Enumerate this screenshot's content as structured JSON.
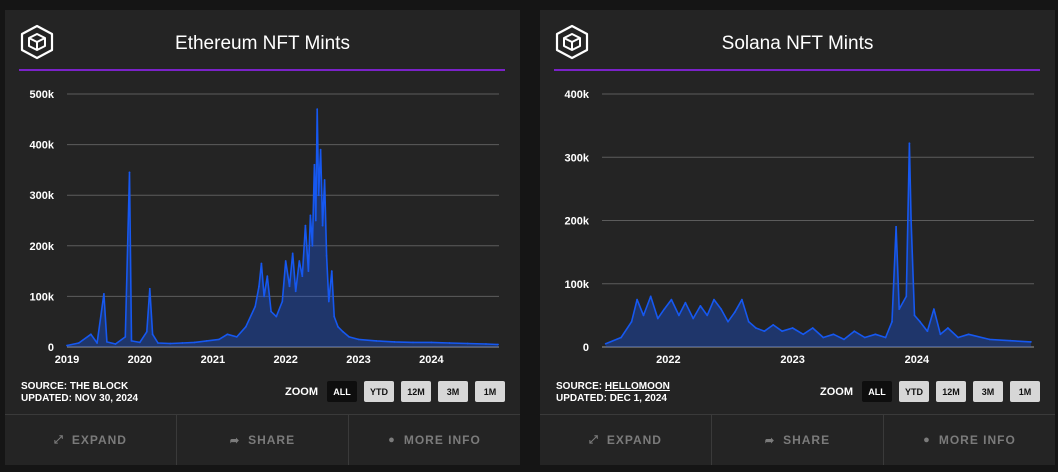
{
  "footer": {
    "expand": "EXPAND",
    "share": "SHARE",
    "more_info": "MORE INFO"
  },
  "zoom": {
    "label": "ZOOM",
    "options": [
      "ALL",
      "YTD",
      "12M",
      "3M",
      "1M"
    ],
    "selected": "ALL"
  },
  "colors": {
    "series": "#1658f0",
    "accent_rule": "#7a22c8",
    "panel_bg": "#242424",
    "grid": "#5c5c5c"
  },
  "icons": {
    "logo": "cube-icon",
    "expand": "expand-arrows-icon",
    "share": "share-arrow-icon",
    "more_info": "info-circle-icon"
  },
  "panels": [
    {
      "title": "Ethereum NFT Mints",
      "source_prefix": "SOURCE:",
      "source_name": "THE BLOCK",
      "updated": "UPDATED: NOV 30, 2024"
    },
    {
      "title": "Solana NFT Mints",
      "source_prefix": "SOURCE:",
      "source_name": "HELLOMOON",
      "updated": "UPDATED: DEC 1, 2024"
    }
  ],
  "chart_data": [
    {
      "type": "area",
      "title": "Ethereum NFT Mints",
      "xlabel": "",
      "ylabel": "",
      "x_ticks": [
        "2019",
        "2020",
        "2021",
        "2022",
        "2023",
        "2024"
      ],
      "y_ticks": [
        "0",
        "100k",
        "200k",
        "300k",
        "400k",
        "500k"
      ],
      "ylim": [
        0,
        500000
      ],
      "grid": true,
      "series": [
        {
          "values": [
            [
              "2019-01-01",
              3000
            ],
            [
              "2019-03-01",
              8000
            ],
            [
              "2019-05-01",
              25000
            ],
            [
              "2019-06-01",
              8000
            ],
            [
              "2019-07-05",
              105000
            ],
            [
              "2019-07-20",
              10000
            ],
            [
              "2019-09-01",
              6000
            ],
            [
              "2019-10-20",
              20000
            ],
            [
              "2019-11-10",
              345000
            ],
            [
              "2019-11-20",
              12000
            ],
            [
              "2020-01-01",
              9000
            ],
            [
              "2020-02-05",
              30000
            ],
            [
              "2020-02-20",
              115000
            ],
            [
              "2020-03-05",
              25000
            ],
            [
              "2020-04-01",
              8000
            ],
            [
              "2020-06-01",
              7000
            ],
            [
              "2020-08-01",
              8000
            ],
            [
              "2020-10-01",
              9000
            ],
            [
              "2020-12-01",
              12000
            ],
            [
              "2021-02-01",
              15000
            ],
            [
              "2021-03-15",
              25000
            ],
            [
              "2021-05-01",
              20000
            ],
            [
              "2021-06-15",
              40000
            ],
            [
              "2021-08-01",
              80000
            ],
            [
              "2021-08-20",
              120000
            ],
            [
              "2021-09-01",
              165000
            ],
            [
              "2021-09-15",
              100000
            ],
            [
              "2021-10-01",
              140000
            ],
            [
              "2021-10-20",
              70000
            ],
            [
              "2021-11-15",
              60000
            ],
            [
              "2021-12-15",
              90000
            ],
            [
              "2022-01-01",
              170000
            ],
            [
              "2022-01-20",
              120000
            ],
            [
              "2022-02-05",
              185000
            ],
            [
              "2022-02-20",
              110000
            ],
            [
              "2022-03-10",
              170000
            ],
            [
              "2022-03-25",
              140000
            ],
            [
              "2022-04-10",
              240000
            ],
            [
              "2022-04-25",
              150000
            ],
            [
              "2022-05-05",
              260000
            ],
            [
              "2022-05-15",
              200000
            ],
            [
              "2022-05-25",
              360000
            ],
            [
              "2022-06-01",
              250000
            ],
            [
              "2022-06-08",
              470000
            ],
            [
              "2022-06-15",
              300000
            ],
            [
              "2022-06-25",
              390000
            ],
            [
              "2022-07-05",
              240000
            ],
            [
              "2022-07-15",
              330000
            ],
            [
              "2022-07-25",
              180000
            ],
            [
              "2022-08-05",
              90000
            ],
            [
              "2022-08-20",
              150000
            ],
            [
              "2022-09-01",
              60000
            ],
            [
              "2022-09-20",
              40000
            ],
            [
              "2022-10-15",
              30000
            ],
            [
              "2022-11-15",
              20000
            ],
            [
              "2023-01-01",
              15000
            ],
            [
              "2023-04-01",
              12000
            ],
            [
              "2023-07-01",
              10000
            ],
            [
              "2023-10-01",
              9000
            ],
            [
              "2024-01-01",
              9000
            ],
            [
              "2024-04-01",
              8000
            ],
            [
              "2024-07-01",
              7000
            ],
            [
              "2024-10-01",
              6000
            ],
            [
              "2024-11-30",
              5000
            ]
          ]
        }
      ]
    },
    {
      "type": "area",
      "title": "Solana NFT Mints",
      "xlabel": "",
      "ylabel": "",
      "x_ticks": [
        "2022",
        "2023",
        "2024"
      ],
      "y_ticks": [
        "0",
        "100k",
        "200k",
        "300k",
        "400k"
      ],
      "ylim": [
        0,
        400000
      ],
      "grid": true,
      "series": [
        {
          "values": [
            [
              "2021-07-01",
              5000
            ],
            [
              "2021-08-15",
              15000
            ],
            [
              "2021-09-15",
              40000
            ],
            [
              "2021-10-01",
              75000
            ],
            [
              "2021-10-20",
              50000
            ],
            [
              "2021-11-10",
              80000
            ],
            [
              "2021-12-01",
              45000
            ],
            [
              "2021-12-20",
              60000
            ],
            [
              "2022-01-10",
              75000
            ],
            [
              "2022-02-01",
              50000
            ],
            [
              "2022-02-20",
              70000
            ],
            [
              "2022-03-15",
              45000
            ],
            [
              "2022-04-05",
              65000
            ],
            [
              "2022-04-25",
              50000
            ],
            [
              "2022-05-15",
              75000
            ],
            [
              "2022-06-05",
              60000
            ],
            [
              "2022-06-25",
              40000
            ],
            [
              "2022-07-15",
              55000
            ],
            [
              "2022-08-05",
              75000
            ],
            [
              "2022-08-25",
              40000
            ],
            [
              "2022-09-15",
              30000
            ],
            [
              "2022-10-10",
              25000
            ],
            [
              "2022-11-05",
              35000
            ],
            [
              "2022-12-01",
              25000
            ],
            [
              "2023-01-01",
              30000
            ],
            [
              "2023-02-01",
              20000
            ],
            [
              "2023-03-01",
              30000
            ],
            [
              "2023-04-01",
              15000
            ],
            [
              "2023-05-01",
              20000
            ],
            [
              "2023-06-01",
              12000
            ],
            [
              "2023-07-01",
              25000
            ],
            [
              "2023-08-01",
              15000
            ],
            [
              "2023-09-01",
              20000
            ],
            [
              "2023-10-01",
              15000
            ],
            [
              "2023-10-20",
              40000
            ],
            [
              "2023-11-01",
              190000
            ],
            [
              "2023-11-10",
              60000
            ],
            [
              "2023-12-01",
              80000
            ],
            [
              "2023-12-10",
              322000
            ],
            [
              "2023-12-15",
              200000
            ],
            [
              "2023-12-25",
              50000
            ],
            [
              "2024-01-10",
              40000
            ],
            [
              "2024-02-01",
              25000
            ],
            [
              "2024-02-20",
              60000
            ],
            [
              "2024-03-10",
              20000
            ],
            [
              "2024-04-01",
              30000
            ],
            [
              "2024-05-01",
              15000
            ],
            [
              "2024-06-01",
              20000
            ],
            [
              "2024-08-01",
              12000
            ],
            [
              "2024-10-01",
              10000
            ],
            [
              "2024-12-01",
              8000
            ]
          ]
        }
      ]
    }
  ]
}
